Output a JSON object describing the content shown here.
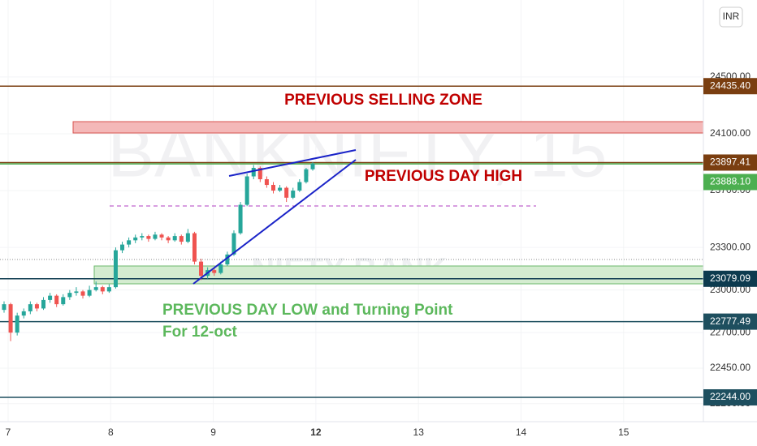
{
  "chart_data": {
    "type": "candlestick",
    "watermark": "BANKNIFTY, 15",
    "watermark_sub": "NIFTY BANK",
    "currency": "INR",
    "categories": [
      "7",
      "8",
      "9",
      "12",
      "13",
      "14",
      "15"
    ],
    "ylim": [
      22073,
      25042
    ],
    "yticks": [
      {
        "value": 24500,
        "label": "24500.00"
      },
      {
        "value": 24100,
        "label": "24100.00"
      },
      {
        "value": 23700,
        "label": "23700.00"
      },
      {
        "value": 23300,
        "label": "23300.00"
      },
      {
        "value": 23000,
        "label": "23000.00"
      },
      {
        "value": 22700,
        "label": "22700.00"
      },
      {
        "value": 22450,
        "label": "22450.00"
      },
      {
        "value": 22200,
        "label": "22200.00"
      }
    ],
    "up_color": "#26a69a",
    "down_color": "#ef5350",
    "ohlc": [
      [
        22860,
        22920,
        22840,
        22900
      ],
      [
        22900,
        22910,
        22640,
        22700
      ],
      [
        22700,
        22840,
        22680,
        22820
      ],
      [
        22820,
        22870,
        22800,
        22850
      ],
      [
        22850,
        22920,
        22830,
        22900
      ],
      [
        22900,
        22910,
        22850,
        22870
      ],
      [
        22870,
        22950,
        22860,
        22930
      ],
      [
        22930,
        22980,
        22910,
        22960
      ],
      [
        22960,
        22970,
        22880,
        22900
      ],
      [
        22900,
        22970,
        22890,
        22950
      ],
      [
        22950,
        23000,
        22930,
        22980
      ],
      [
        22980,
        23020,
        22960,
        22990
      ],
      [
        22990,
        23000,
        22940,
        22960
      ],
      [
        22960,
        23030,
        22950,
        23000
      ],
      [
        23000,
        23060,
        22990,
        23020
      ],
      [
        23020,
        23030,
        22970,
        22990
      ],
      [
        22990,
        23040,
        22980,
        23020
      ],
      [
        23020,
        23300,
        23010,
        23280
      ],
      [
        23280,
        23340,
        23260,
        23320
      ],
      [
        23320,
        23370,
        23300,
        23350
      ],
      [
        23350,
        23390,
        23330,
        23370
      ],
      [
        23370,
        23400,
        23350,
        23380
      ],
      [
        23380,
        23390,
        23340,
        23360
      ],
      [
        23360,
        23410,
        23350,
        23390
      ],
      [
        23390,
        23400,
        23350,
        23370
      ],
      [
        23370,
        23380,
        23330,
        23350
      ],
      [
        23350,
        23400,
        23340,
        23380
      ],
      [
        23380,
        23390,
        23320,
        23340
      ],
      [
        23340,
        23430,
        23330,
        23400
      ],
      [
        23400,
        23410,
        23180,
        23200
      ],
      [
        23200,
        23220,
        23070,
        23100
      ],
      [
        23100,
        23160,
        23080,
        23140
      ],
      [
        23140,
        23150,
        23100,
        23120
      ],
      [
        23120,
        23200,
        23110,
        23180
      ],
      [
        23180,
        23270,
        23170,
        23250
      ],
      [
        23250,
        23420,
        23240,
        23400
      ],
      [
        23400,
        23620,
        23390,
        23600
      ],
      [
        23600,
        23820,
        23590,
        23800
      ],
      [
        23800,
        23880,
        23780,
        23860
      ],
      [
        23860,
        23870,
        23760,
        23780
      ],
      [
        23780,
        23800,
        23720,
        23740
      ],
      [
        23740,
        23760,
        23680,
        23700
      ],
      [
        23700,
        23740,
        23690,
        23720
      ],
      [
        23720,
        23730,
        23620,
        23650
      ],
      [
        23650,
        23720,
        23640,
        23700
      ],
      [
        23700,
        23780,
        23690,
        23760
      ],
      [
        23760,
        23860,
        23750,
        23850
      ],
      [
        23850,
        23900,
        23840,
        23890
      ]
    ],
    "levels": [
      {
        "value": 24435.4,
        "label": "24435.40",
        "color": "#7a3e10"
      },
      {
        "value": 23897.41,
        "label": "23897.41",
        "color": "#7a3e10"
      },
      {
        "value": 23888.1,
        "label": "23888.10",
        "color": "#4caf50"
      },
      {
        "value": 23079.09,
        "label": "23079.09",
        "color": "#0d3b4f"
      },
      {
        "value": 22777.49,
        "label": "22777.49",
        "color": "#1e4f5f"
      },
      {
        "value": 22244.0,
        "label": "22244.00",
        "color": "#1e4f5f"
      }
    ],
    "annotations": {
      "selling_zone": "PREVIOUS SELLING ZONE",
      "day_high": "PREVIOUS DAY HIGH",
      "day_low": "PREVIOUS DAY LOW and Turning Point",
      "day_low_sub": "For 12-oct"
    }
  }
}
